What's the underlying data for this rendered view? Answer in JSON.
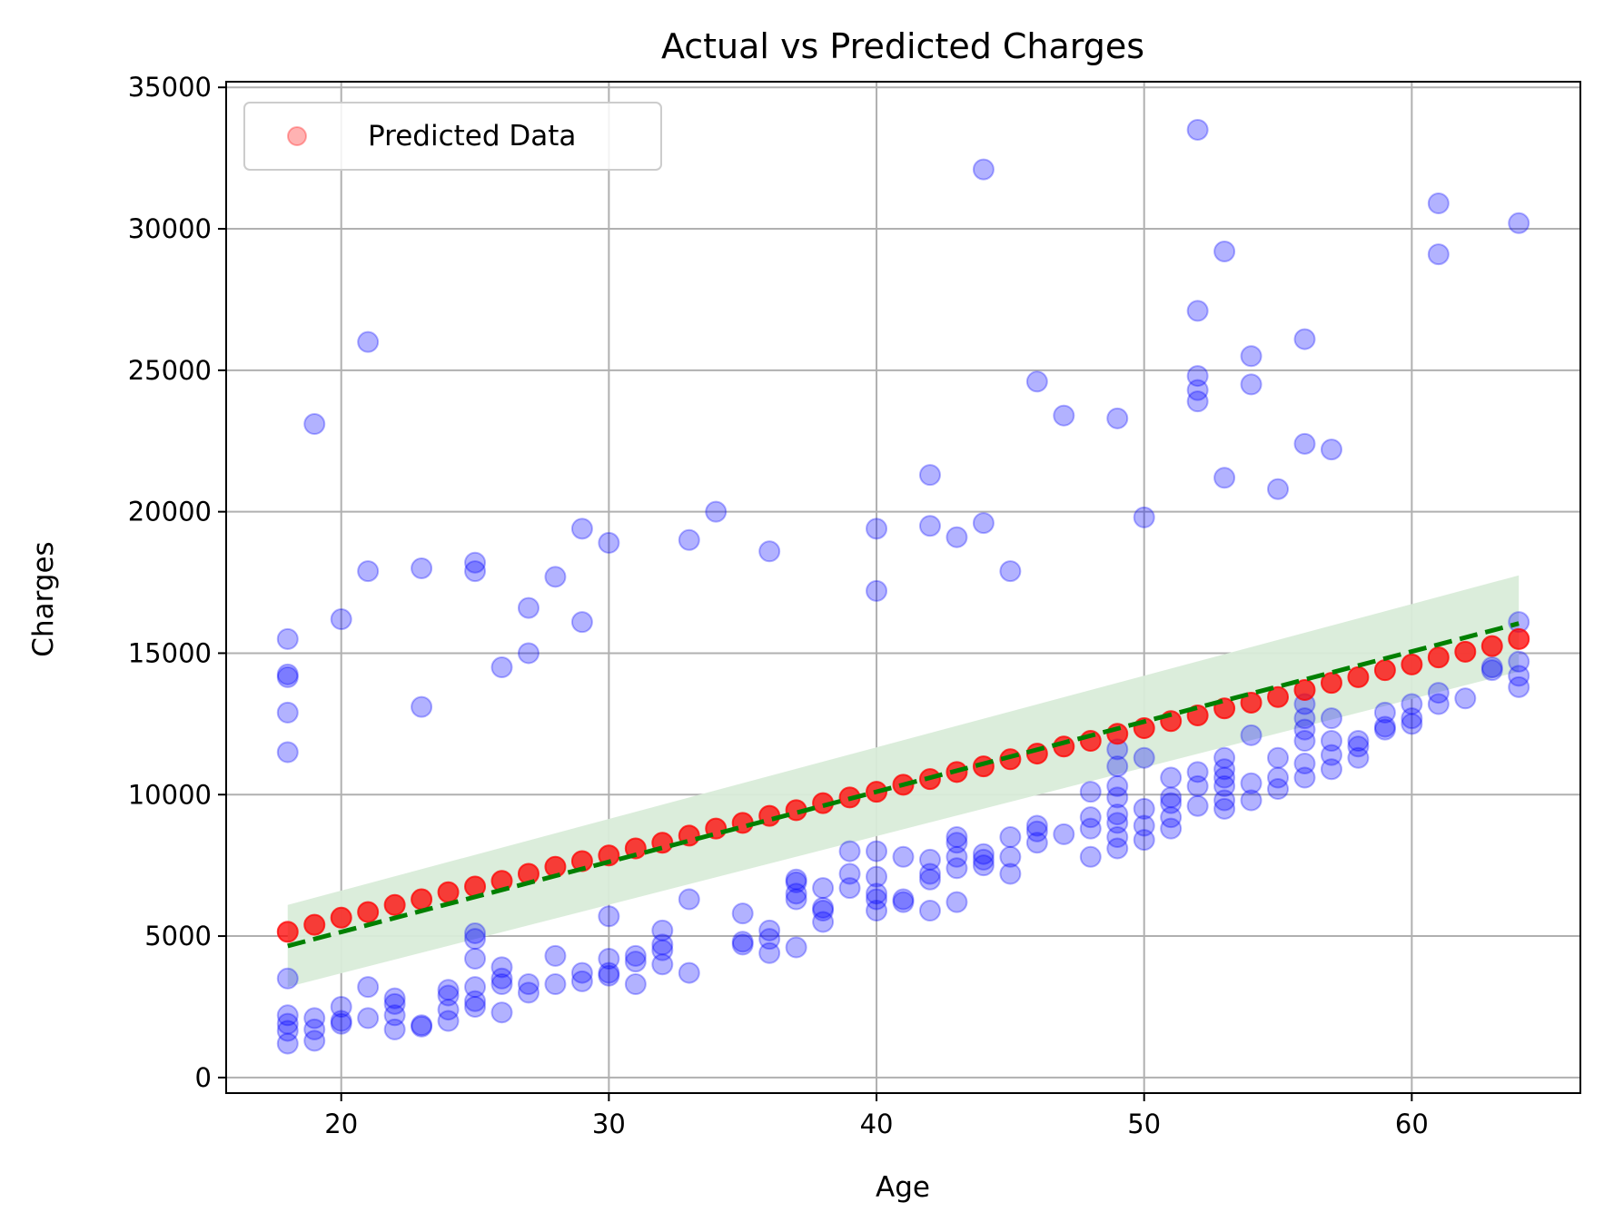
{
  "chart_data": {
    "type": "scatter",
    "title": "Actual vs Predicted Charges",
    "xlabel": "Age",
    "ylabel": "Charges",
    "xlim": [
      15.7,
      66.3
    ],
    "ylim": [
      -550,
      35200
    ],
    "xticks": [
      20,
      30,
      40,
      50,
      60
    ],
    "yticks": [
      0,
      5000,
      10000,
      15000,
      20000,
      25000,
      30000,
      35000
    ],
    "grid": true,
    "legend": {
      "position": "top-left",
      "entries": [
        "Predicted Data"
      ]
    },
    "colors": {
      "actual": "#0000ff",
      "predicted": "#ff0000",
      "trend": "#008000",
      "band": "#d9ecd9",
      "grid": "#b0b0b0"
    },
    "series": [
      {
        "kind": "actual",
        "points": [
          [
            18,
            1200
          ],
          [
            18,
            1650
          ],
          [
            18,
            2200
          ],
          [
            18,
            1900
          ],
          [
            18,
            3500
          ],
          [
            18,
            11500
          ],
          [
            18,
            12900
          ],
          [
            18,
            14150
          ],
          [
            18,
            14250
          ],
          [
            18,
            15500
          ],
          [
            19,
            1300
          ],
          [
            19,
            1700
          ],
          [
            19,
            2100
          ],
          [
            19,
            23100
          ],
          [
            20,
            1900
          ],
          [
            20,
            2000
          ],
          [
            20,
            2500
          ],
          [
            20,
            16200
          ],
          [
            21,
            2100
          ],
          [
            21,
            3200
          ],
          [
            21,
            17900
          ],
          [
            21,
            26000
          ],
          [
            22,
            1700
          ],
          [
            22,
            2200
          ],
          [
            22,
            2600
          ],
          [
            22,
            2800
          ],
          [
            23,
            1800
          ],
          [
            23,
            1850
          ],
          [
            23,
            13100
          ],
          [
            23,
            18000
          ],
          [
            24,
            2000
          ],
          [
            24,
            2400
          ],
          [
            24,
            2900
          ],
          [
            24,
            3100
          ],
          [
            25,
            2500
          ],
          [
            25,
            2700
          ],
          [
            25,
            3200
          ],
          [
            25,
            4200
          ],
          [
            25,
            4900
          ],
          [
            25,
            5100
          ],
          [
            25,
            17900
          ],
          [
            25,
            18200
          ],
          [
            26,
            2300
          ],
          [
            26,
            3300
          ],
          [
            26,
            3500
          ],
          [
            26,
            3900
          ],
          [
            26,
            14500
          ],
          [
            27,
            3000
          ],
          [
            27,
            3300
          ],
          [
            27,
            15000
          ],
          [
            27,
            16600
          ],
          [
            28,
            3300
          ],
          [
            28,
            4300
          ],
          [
            28,
            17700
          ],
          [
            29,
            3400
          ],
          [
            29,
            3700
          ],
          [
            29,
            16100
          ],
          [
            29,
            19400
          ],
          [
            30,
            3600
          ],
          [
            30,
            3700
          ],
          [
            30,
            4200
          ],
          [
            30,
            5700
          ],
          [
            30,
            18900
          ],
          [
            31,
            3300
          ],
          [
            31,
            4100
          ],
          [
            31,
            4300
          ],
          [
            32,
            4000
          ],
          [
            32,
            4500
          ],
          [
            32,
            4700
          ],
          [
            32,
            5200
          ],
          [
            33,
            3700
          ],
          [
            33,
            6300
          ],
          [
            33,
            19000
          ],
          [
            34,
            20000
          ],
          [
            35,
            4700
          ],
          [
            35,
            4800
          ],
          [
            35,
            5800
          ],
          [
            36,
            4400
          ],
          [
            36,
            4900
          ],
          [
            36,
            5200
          ],
          [
            36,
            18600
          ],
          [
            37,
            4600
          ],
          [
            37,
            6300
          ],
          [
            37,
            6500
          ],
          [
            37,
            6900
          ],
          [
            37,
            7000
          ],
          [
            38,
            5500
          ],
          [
            38,
            5900
          ],
          [
            38,
            6000
          ],
          [
            38,
            6700
          ],
          [
            39,
            6700
          ],
          [
            39,
            7200
          ],
          [
            39,
            8000
          ],
          [
            40,
            5900
          ],
          [
            40,
            6300
          ],
          [
            40,
            6500
          ],
          [
            40,
            7100
          ],
          [
            40,
            8000
          ],
          [
            40,
            17200
          ],
          [
            40,
            19400
          ],
          [
            41,
            6200
          ],
          [
            41,
            6300
          ],
          [
            41,
            7800
          ],
          [
            42,
            5900
          ],
          [
            42,
            7000
          ],
          [
            42,
            7200
          ],
          [
            42,
            7700
          ],
          [
            42,
            19500
          ],
          [
            42,
            21300
          ],
          [
            43,
            6200
          ],
          [
            43,
            7400
          ],
          [
            43,
            7800
          ],
          [
            43,
            8300
          ],
          [
            43,
            8500
          ],
          [
            43,
            19100
          ],
          [
            44,
            7500
          ],
          [
            44,
            7700
          ],
          [
            44,
            7900
          ],
          [
            44,
            19600
          ],
          [
            44,
            32100
          ],
          [
            45,
            7200
          ],
          [
            45,
            7800
          ],
          [
            45,
            8500
          ],
          [
            45,
            17900
          ],
          [
            46,
            8300
          ],
          [
            46,
            8700
          ],
          [
            46,
            8900
          ],
          [
            46,
            24600
          ],
          [
            47,
            8600
          ],
          [
            47,
            23400
          ],
          [
            48,
            7800
          ],
          [
            48,
            8800
          ],
          [
            48,
            9200
          ],
          [
            48,
            10100
          ],
          [
            49,
            8100
          ],
          [
            49,
            8500
          ],
          [
            49,
            9000
          ],
          [
            49,
            9300
          ],
          [
            49,
            9900
          ],
          [
            49,
            10300
          ],
          [
            49,
            11000
          ],
          [
            49,
            11600
          ],
          [
            49,
            23300
          ],
          [
            50,
            8400
          ],
          [
            50,
            8900
          ],
          [
            50,
            9500
          ],
          [
            50,
            11300
          ],
          [
            50,
            19800
          ],
          [
            51,
            8800
          ],
          [
            51,
            9200
          ],
          [
            51,
            9700
          ],
          [
            51,
            9900
          ],
          [
            51,
            10600
          ],
          [
            52,
            9600
          ],
          [
            52,
            10300
          ],
          [
            52,
            10800
          ],
          [
            52,
            23900
          ],
          [
            52,
            24300
          ],
          [
            52,
            24800
          ],
          [
            52,
            27100
          ],
          [
            52,
            33500
          ],
          [
            53,
            9500
          ],
          [
            53,
            9800
          ],
          [
            53,
            10300
          ],
          [
            53,
            10600
          ],
          [
            53,
            10900
          ],
          [
            53,
            11300
          ],
          [
            53,
            21200
          ],
          [
            53,
            29200
          ],
          [
            54,
            9800
          ],
          [
            54,
            10400
          ],
          [
            54,
            12100
          ],
          [
            54,
            24500
          ],
          [
            54,
            25500
          ],
          [
            55,
            10200
          ],
          [
            55,
            10600
          ],
          [
            55,
            11300
          ],
          [
            55,
            20800
          ],
          [
            56,
            10600
          ],
          [
            56,
            11100
          ],
          [
            56,
            11900
          ],
          [
            56,
            12300
          ],
          [
            56,
            12700
          ],
          [
            56,
            13200
          ],
          [
            56,
            22400
          ],
          [
            56,
            26100
          ],
          [
            57,
            10900
          ],
          [
            57,
            11400
          ],
          [
            57,
            11900
          ],
          [
            57,
            12700
          ],
          [
            57,
            22200
          ],
          [
            58,
            11300
          ],
          [
            58,
            11700
          ],
          [
            58,
            11900
          ],
          [
            59,
            12300
          ],
          [
            59,
            12400
          ],
          [
            59,
            12900
          ],
          [
            60,
            12500
          ],
          [
            60,
            12700
          ],
          [
            60,
            13200
          ],
          [
            61,
            13200
          ],
          [
            61,
            13600
          ],
          [
            61,
            29100
          ],
          [
            61,
            30900
          ],
          [
            62,
            13400
          ],
          [
            63,
            14400
          ],
          [
            63,
            14500
          ],
          [
            64,
            13800
          ],
          [
            64,
            14200
          ],
          [
            64,
            14700
          ],
          [
            64,
            16100
          ],
          [
            64,
            30200
          ]
        ]
      },
      {
        "kind": "predicted",
        "name": "Predicted Data",
        "points": [
          [
            18,
            5150
          ],
          [
            19,
            5400
          ],
          [
            20,
            5650
          ],
          [
            21,
            5850
          ],
          [
            22,
            6100
          ],
          [
            23,
            6300
          ],
          [
            24,
            6550
          ],
          [
            25,
            6750
          ],
          [
            26,
            6950
          ],
          [
            27,
            7200
          ],
          [
            28,
            7450
          ],
          [
            29,
            7650
          ],
          [
            30,
            7850
          ],
          [
            31,
            8100
          ],
          [
            32,
            8300
          ],
          [
            33,
            8550
          ],
          [
            34,
            8800
          ],
          [
            35,
            9000
          ],
          [
            36,
            9250
          ],
          [
            37,
            9450
          ],
          [
            38,
            9700
          ],
          [
            39,
            9900
          ],
          [
            40,
            10100
          ],
          [
            41,
            10350
          ],
          [
            42,
            10550
          ],
          [
            43,
            10800
          ],
          [
            44,
            11000
          ],
          [
            45,
            11250
          ],
          [
            46,
            11450
          ],
          [
            47,
            11700
          ],
          [
            48,
            11900
          ],
          [
            49,
            12150
          ],
          [
            50,
            12350
          ],
          [
            51,
            12600
          ],
          [
            52,
            12800
          ],
          [
            53,
            13050
          ],
          [
            54,
            13250
          ],
          [
            55,
            13450
          ],
          [
            56,
            13700
          ],
          [
            57,
            13950
          ],
          [
            58,
            14150
          ],
          [
            59,
            14400
          ],
          [
            60,
            14600
          ],
          [
            61,
            14850
          ],
          [
            62,
            15050
          ],
          [
            63,
            15250
          ],
          [
            64,
            15500
          ]
        ]
      }
    ],
    "trend_line": {
      "x": [
        18,
        64
      ],
      "y": [
        4650,
        16050
      ]
    },
    "confidence_band": {
      "x": [
        18,
        64
      ],
      "lower": [
        3200,
        14350
      ],
      "upper": [
        6100,
        17750
      ]
    }
  }
}
